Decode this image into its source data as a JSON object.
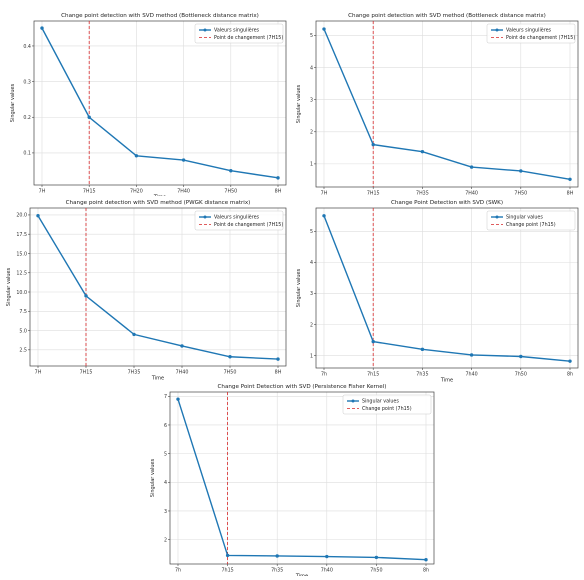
{
  "colors": {
    "line": "#1f77b4",
    "changepoint": "#d62728",
    "grid": "#dddddd",
    "axis": "#444444"
  },
  "chart_data": [
    {
      "type": "line",
      "title": "Change point detection with SVD method (Bottleneck distance matrix)",
      "xlabel": "Time",
      "ylabel": "Singular values",
      "categories": [
        "7H",
        "7H15",
        "7H20",
        "7H40",
        "7H50",
        "8H"
      ],
      "series": [
        {
          "name": "Valeurs singulières",
          "values": [
            0.45,
            0.2,
            0.092,
            0.08,
            0.05,
            0.03
          ]
        }
      ],
      "changepoint": {
        "label": "Point de changement (7H15)",
        "category": "7H15"
      },
      "yticks": [
        0.1,
        0.2,
        0.3,
        0.4
      ],
      "ylim": [
        0.01,
        0.47
      ],
      "grid": true,
      "legend": "top-right"
    },
    {
      "type": "line",
      "title": "Change point detection with SVD method (Bottleneck distance matrix)",
      "xlabel": "Time",
      "ylabel": "Singular values",
      "categories": [
        "7H",
        "7H15",
        "7H35",
        "7H40",
        "7H50",
        "8H"
      ],
      "series": [
        {
          "name": "Valeurs singulières",
          "values": [
            5.2,
            1.6,
            1.38,
            0.9,
            0.78,
            0.52
          ]
        }
      ],
      "changepoint": {
        "label": "Point de changement (7H15)",
        "category": "7H15"
      },
      "yticks": [
        1,
        2,
        3,
        4,
        5
      ],
      "ylim": [
        0.28,
        5.45
      ],
      "grid": true,
      "legend": "top-right"
    },
    {
      "type": "line",
      "title": "Change point detection with SVD method (PWGK distance matrix)",
      "xlabel": "Time",
      "ylabel": "Singular values",
      "categories": [
        "7H",
        "7H15",
        "7H35",
        "7H40",
        "7H50",
        "8H"
      ],
      "series": [
        {
          "name": "Valeurs singulières",
          "values": [
            19.9,
            9.5,
            4.5,
            3.0,
            1.6,
            1.3
          ]
        }
      ],
      "changepoint": {
        "label": "Point de changement (7H15)",
        "category": "7H15"
      },
      "yticks": [
        2.5,
        5.0,
        7.5,
        10.0,
        12.5,
        15.0,
        17.5,
        20.0
      ],
      "ylim": [
        0.4,
        20.9
      ],
      "grid": true,
      "legend": "top-right"
    },
    {
      "type": "line",
      "title": "Change Point Detection with SVD (SWK)",
      "xlabel": "Time",
      "ylabel": "Singular values",
      "categories": [
        "7h",
        "7h15",
        "7h35",
        "7h40",
        "7h50",
        "8h"
      ],
      "series": [
        {
          "name": "Singular values",
          "values": [
            5.5,
            1.45,
            1.2,
            1.02,
            0.97,
            0.82
          ]
        }
      ],
      "changepoint": {
        "label": "Change point (7h15)",
        "category": "7h15"
      },
      "yticks": [
        1,
        2,
        3,
        4,
        5
      ],
      "ylim": [
        0.6,
        5.75
      ],
      "grid": true,
      "legend": "top-right"
    },
    {
      "type": "line",
      "title": "Change Point Detection with SVD (Persistence Fisher Kernel)",
      "xlabel": "Time",
      "ylabel": "Singular values",
      "categories": [
        "7h",
        "7h15",
        "7h35",
        "7h40",
        "7h50",
        "8h"
      ],
      "series": [
        {
          "name": "Singular values",
          "values": [
            6.9,
            1.45,
            1.43,
            1.41,
            1.38,
            1.3
          ]
        }
      ],
      "changepoint": {
        "label": "Change point (7h15)",
        "category": "7h15"
      },
      "yticks": [
        2,
        3,
        4,
        5,
        6,
        7
      ],
      "ylim": [
        1.15,
        7.15
      ],
      "grid": true,
      "legend": "top-right"
    }
  ]
}
